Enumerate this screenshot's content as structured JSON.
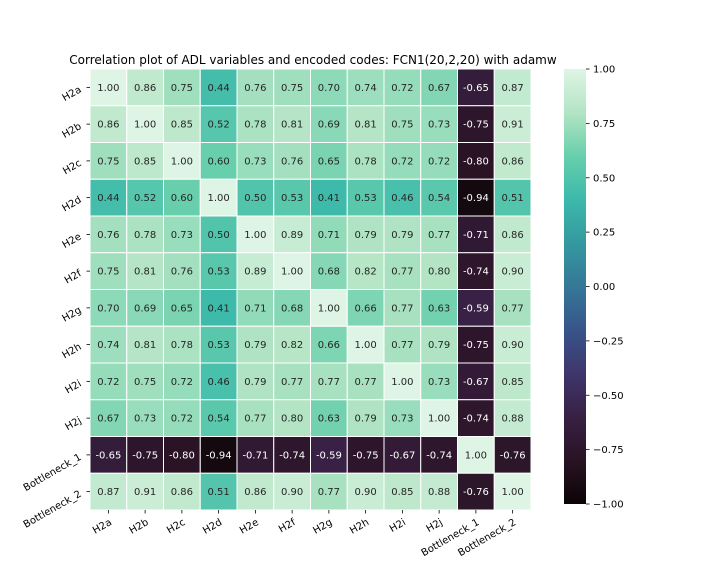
{
  "chart_data": {
    "type": "heatmap",
    "title": "Correlation plot of ADL variables and encoded codes: FCN1(20,2,20) with adamw",
    "xlabel": "",
    "ylabel": "",
    "row_labels": [
      "H2a",
      "H2b",
      "H2c",
      "H2d",
      "H2e",
      "H2f",
      "H2g",
      "H2h",
      "H2i",
      "H2j",
      "Bottleneck_1",
      "Bottleneck_2"
    ],
    "col_labels": [
      "H2a",
      "H2b",
      "H2c",
      "H2d",
      "H2e",
      "H2f",
      "H2g",
      "H2h",
      "H2i",
      "H2j",
      "Bottleneck_1",
      "Bottleneck_2"
    ],
    "values": [
      [
        1.0,
        0.86,
        0.75,
        0.44,
        0.76,
        0.75,
        0.7,
        0.74,
        0.72,
        0.67,
        -0.65,
        0.87
      ],
      [
        0.86,
        1.0,
        0.85,
        0.52,
        0.78,
        0.81,
        0.69,
        0.81,
        0.75,
        0.73,
        -0.75,
        0.91
      ],
      [
        0.75,
        0.85,
        1.0,
        0.6,
        0.73,
        0.76,
        0.65,
        0.78,
        0.72,
        0.72,
        -0.8,
        0.86
      ],
      [
        0.44,
        0.52,
        0.6,
        1.0,
        0.5,
        0.53,
        0.41,
        0.53,
        0.46,
        0.54,
        -0.94,
        0.51
      ],
      [
        0.76,
        0.78,
        0.73,
        0.5,
        1.0,
        0.89,
        0.71,
        0.79,
        0.79,
        0.77,
        -0.71,
        0.86
      ],
      [
        0.75,
        0.81,
        0.76,
        0.53,
        0.89,
        1.0,
        0.68,
        0.82,
        0.77,
        0.8,
        -0.74,
        0.9
      ],
      [
        0.7,
        0.69,
        0.65,
        0.41,
        0.71,
        0.68,
        1.0,
        0.66,
        0.77,
        0.63,
        -0.59,
        0.77
      ],
      [
        0.74,
        0.81,
        0.78,
        0.53,
        0.79,
        0.82,
        0.66,
        1.0,
        0.77,
        0.79,
        -0.75,
        0.9
      ],
      [
        0.72,
        0.75,
        0.72,
        0.46,
        0.79,
        0.77,
        0.77,
        0.77,
        1.0,
        0.73,
        -0.67,
        0.85
      ],
      [
        0.67,
        0.73,
        0.72,
        0.54,
        0.77,
        0.8,
        0.63,
        0.79,
        0.73,
        1.0,
        -0.74,
        0.88
      ],
      [
        -0.65,
        -0.75,
        -0.8,
        -0.94,
        -0.71,
        -0.74,
        -0.59,
        -0.75,
        -0.67,
        -0.74,
        1.0,
        -0.76
      ],
      [
        0.87,
        0.91,
        0.86,
        0.51,
        0.86,
        0.9,
        0.77,
        0.9,
        0.85,
        0.88,
        -0.76,
        1.0
      ]
    ],
    "value_format": "2 decimals",
    "vmin": -1.0,
    "vmax": 1.0,
    "colormap": "mako",
    "colorbar_ticks": [
      "1.00",
      "0.75",
      "0.50",
      "0.25",
      "0.00",
      "−0.25",
      "−0.50",
      "−0.75",
      "−1.00"
    ],
    "colorbar_tick_values": [
      1.0,
      0.75,
      0.5,
      0.25,
      0.0,
      -0.25,
      -0.5,
      -0.75,
      -1.0
    ],
    "cell_border_color": "#ffffff",
    "legend": "colorbar-right",
    "grid": false
  }
}
